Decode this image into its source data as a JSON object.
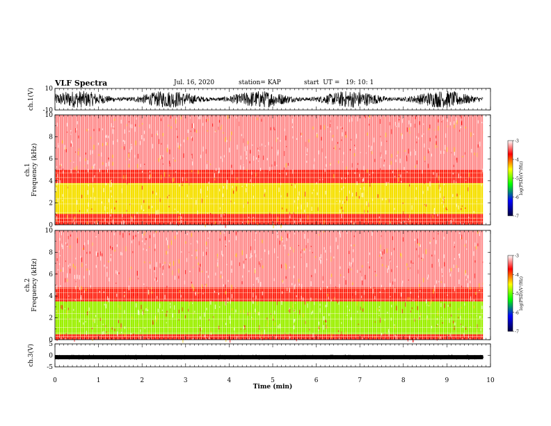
{
  "header": {
    "title": "VLF Spectra",
    "date": "Jul. 16, 2020",
    "station": "station= KAP",
    "start_ut": "start  UT =   19: 10: 1"
  },
  "colorbar": {
    "label": "log(PSD)(V²/Hz)",
    "ticks": [
      "-3",
      "-4",
      "-5",
      "-6",
      "-7"
    ],
    "stops": [
      "#ffffff",
      "#ff0000",
      "#ffff00",
      "#00ff00",
      "#0000ff",
      "#000040"
    ]
  },
  "chart_data": [
    {
      "type": "line",
      "title": "",
      "ylabel": "ch.1(V)",
      "ylim": [
        -10,
        10
      ],
      "yticks": [
        "10",
        "-10"
      ],
      "description_values": {
        "baseline": 0,
        "amplitude": 8
      }
    },
    {
      "type": "heatmap",
      "ylabel": "ch.1\nFrequency (kHz)",
      "ylim": [
        0,
        10
      ],
      "yticks": [
        "0",
        "2",
        "4",
        "6",
        "8",
        "10"
      ],
      "bands_khz": [
        {
          "from": 0.0,
          "to": 1.0,
          "level": "red"
        },
        {
          "from": 1.0,
          "to": 3.8,
          "level": "yellow"
        },
        {
          "from": 3.8,
          "to": 5.0,
          "level": "red"
        },
        {
          "from": 5.0,
          "to": 10.0,
          "level": "light-red"
        }
      ]
    },
    {
      "type": "heatmap",
      "ylabel": "ch.2\nFrequency (kHz)",
      "ylim": [
        0,
        10
      ],
      "yticks": [
        "0",
        "2",
        "4",
        "6",
        "8",
        "10"
      ],
      "bands_khz": [
        {
          "from": 0.0,
          "to": 0.5,
          "level": "red"
        },
        {
          "from": 0.5,
          "to": 3.5,
          "level": "green-yellow"
        },
        {
          "from": 3.5,
          "to": 4.8,
          "level": "red"
        },
        {
          "from": 4.8,
          "to": 10.0,
          "level": "light-red"
        }
      ]
    },
    {
      "type": "line",
      "ylabel": "ch.3(V)",
      "ylim": [
        -5,
        5
      ],
      "yticks": [
        "5",
        "0",
        "-5"
      ],
      "description_values": {
        "baseline": -0.8,
        "amplitude": 0.4
      }
    }
  ],
  "xaxis": {
    "label": "Time (min)",
    "xlim": [
      0,
      10
    ],
    "ticks": [
      "0",
      "1",
      "2",
      "3",
      "4",
      "5",
      "6",
      "7",
      "8",
      "9",
      "10"
    ],
    "data_end_min": 9.83
  }
}
